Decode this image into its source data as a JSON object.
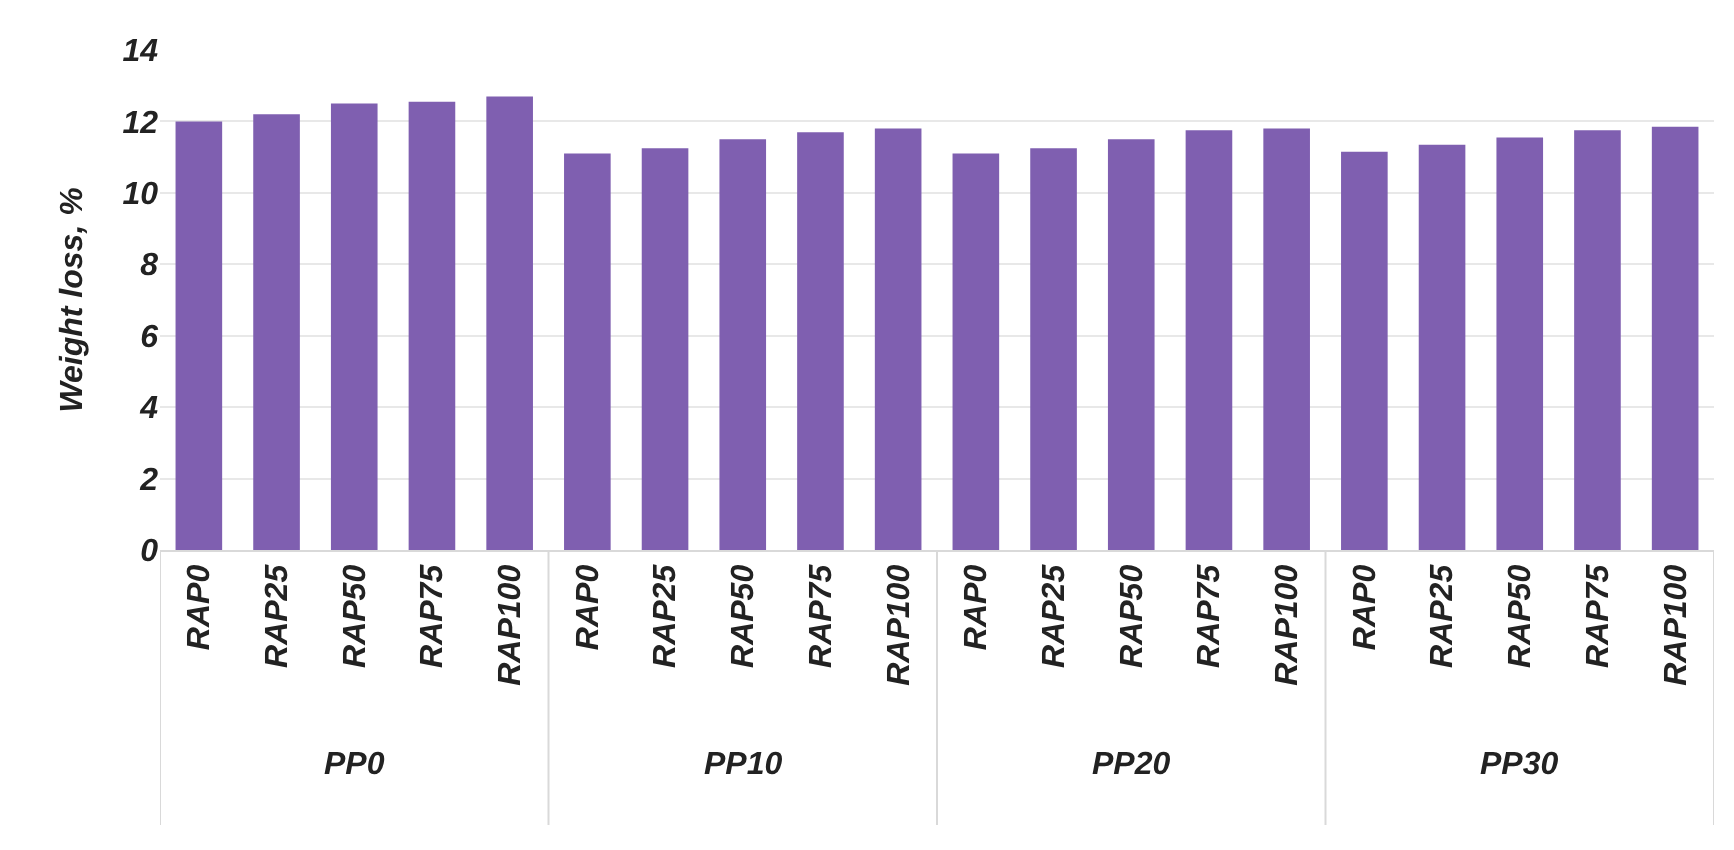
{
  "chart_data": {
    "type": "bar",
    "ylabel": "Weight loss, %",
    "categories": [
      "RAP0",
      "RAP25",
      "RAP50",
      "RAP75",
      "RAP100",
      "RAP0",
      "RAP25",
      "RAP50",
      "RAP75",
      "RAP100",
      "RAP0",
      "RAP25",
      "RAP50",
      "RAP75",
      "RAP100",
      "RAP0",
      "RAP25",
      "RAP50",
      "RAP75",
      "RAP100"
    ],
    "values": [
      12.0,
      12.2,
      12.5,
      12.55,
      12.7,
      11.1,
      11.25,
      11.5,
      11.7,
      11.8,
      11.1,
      11.25,
      11.5,
      11.75,
      11.8,
      11.15,
      11.35,
      11.55,
      11.75,
      11.85
    ],
    "color": "#7f5fb0",
    "ylim": [
      0,
      14
    ],
    "yticks": [
      0,
      2,
      4,
      6,
      8,
      10,
      12,
      14
    ],
    "grid": "y",
    "legend": false,
    "annotations": [
      "PP0",
      "PP10",
      "PP20",
      "PP30"
    ]
  }
}
